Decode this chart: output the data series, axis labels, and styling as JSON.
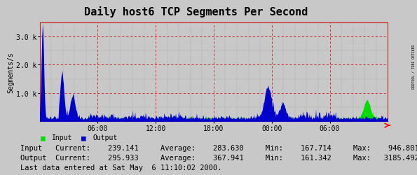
{
  "title": "Daily host6 TCP Segments Per Second",
  "ylabel": "Segments/s",
  "bg_color": "#c8c8c8",
  "plot_bg_color": "#c8c8c8",
  "input_color": "#00dd00",
  "output_color": "#0000cc",
  "ylim": [
    0,
    3500
  ],
  "yticks": [
    1000,
    2000,
    3000
  ],
  "ytick_labels": [
    "1.0 k",
    "2.0 k",
    "3.0 k"
  ],
  "xtick_positions": [
    0.1667,
    0.3333,
    0.5,
    0.6667,
    0.8333
  ],
  "xtick_labels": [
    "06:00",
    "12:00",
    "18:00",
    "00:00",
    "06:00"
  ],
  "watermark": "RRDTOOL / TOBI OETIKER",
  "stats_line1": "Input   Current:    239.141     Average:    283.630     Min:    167.714     Max:    946.801",
  "stats_line2": "Output  Current:    295.933     Average:    367.941     Min:    161.342     Max:   3185.492",
  "last_data": "Last data entered at Sat May  6 11:10:02 2000.",
  "title_fontsize": 11,
  "stats_fontsize": 7.5,
  "font_family": "monospace"
}
